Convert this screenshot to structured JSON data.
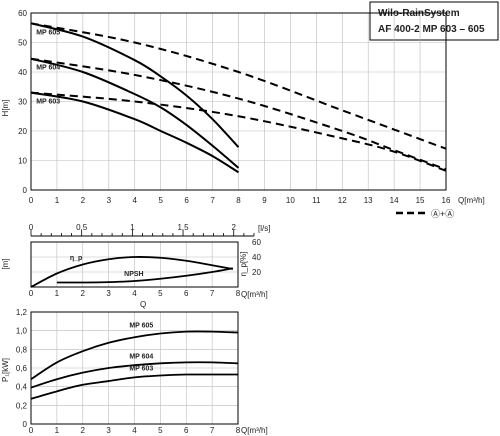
{
  "header": {
    "title_line1": "Wilo-RainSystem",
    "title_line2": "AF 400-2   MP 603 – 605"
  },
  "legend": {
    "label": "Ⓐ+Ⓐ"
  },
  "chart_data": [
    {
      "type": "line",
      "id": "head-curve",
      "ylabel": "H[m]",
      "xlabel": "Q[m³/h]",
      "xlim": [
        0,
        16
      ],
      "ylim": [
        0,
        60
      ],
      "x_ticks": [
        "0",
        "1",
        "2",
        "3",
        "4",
        "5",
        "6",
        "7",
        "8",
        "9",
        "10",
        "11",
        "12",
        "13",
        "14",
        "15",
        "16"
      ],
      "y_ticks": [
        "0",
        "10",
        "20",
        "30",
        "40",
        "50",
        "60"
      ],
      "grid": true,
      "series": [
        {
          "name": "MP 605",
          "style": "solid",
          "x": [
            0,
            2,
            4,
            5,
            6,
            7,
            8
          ],
          "y": [
            56.5,
            52,
            44,
            38.5,
            32,
            24,
            14.5
          ]
        },
        {
          "name": "MP 604",
          "style": "solid",
          "x": [
            0,
            2,
            4,
            5,
            6,
            7,
            8
          ],
          "y": [
            44.5,
            40,
            32.5,
            28,
            22,
            15,
            7.5
          ]
        },
        {
          "name": "MP 603",
          "style": "solid",
          "x": [
            0,
            2,
            4,
            5,
            6,
            7,
            8
          ],
          "y": [
            33,
            30,
            24,
            20,
            16,
            11.5,
            6
          ]
        },
        {
          "name": "MP 605 Ⓐ+Ⓐ",
          "style": "dashed",
          "x": [
            0,
            4,
            8,
            12,
            14,
            16
          ],
          "y": [
            56.5,
            50,
            40,
            27,
            20.5,
            14
          ]
        },
        {
          "name": "MP 604 Ⓐ+Ⓐ",
          "style": "dashed",
          "x": [
            0,
            4,
            8,
            12,
            14,
            16
          ],
          "y": [
            44.5,
            39,
            31,
            20,
            13.5,
            7
          ]
        },
        {
          "name": "MP 603 Ⓐ+Ⓐ",
          "style": "dashed",
          "x": [
            0,
            4,
            8,
            12,
            14,
            16
          ],
          "y": [
            33,
            30,
            25,
            17.5,
            13,
            6.5
          ]
        }
      ]
    },
    {
      "type": "axis",
      "id": "ls-scale",
      "xlabel": "[l/s]",
      "xlim": [
        0,
        2.2
      ],
      "x_ticks": [
        "0",
        "0,5",
        "1",
        "1,5",
        "2"
      ]
    },
    {
      "type": "line",
      "id": "npsh-eff",
      "ylabel_left": "[m]",
      "ylabel_right": "η_p[%]",
      "xlabel": "Q[m³/h]",
      "xlim": [
        0,
        8
      ],
      "ylim_right": [
        0,
        60
      ],
      "x_ticks": [
        "0",
        "1",
        "2",
        "3",
        "4",
        "5",
        "6",
        "7",
        "8"
      ],
      "y_ticks_right": [
        "20",
        "40",
        "60"
      ],
      "grid": true,
      "series": [
        {
          "name": "η_p",
          "x": [
            0,
            1,
            2,
            3,
            4,
            5,
            6,
            7,
            7.8
          ],
          "y": [
            0,
            18,
            30,
            37,
            40,
            39,
            35,
            29,
            24
          ]
        },
        {
          "name": "NPSH",
          "x": [
            1,
            2,
            3,
            4,
            5,
            6,
            7,
            7.8
          ],
          "y": [
            6,
            6,
            6.5,
            8,
            11,
            15,
            20,
            25
          ]
        }
      ]
    },
    {
      "type": "line",
      "id": "power",
      "ylabel": "P₁[kW]",
      "xlabel": "Q[m³/h]",
      "xlim": [
        0,
        8
      ],
      "ylim": [
        0,
        1.2
      ],
      "x_ticks": [
        "0",
        "1",
        "2",
        "3",
        "4",
        "5",
        "6",
        "7",
        "8"
      ],
      "y_ticks": [
        "0",
        "0,2",
        "0,4",
        "0,6",
        "0,8",
        "1,0",
        "1,2"
      ],
      "grid": true,
      "series": [
        {
          "name": "MP 605",
          "x": [
            0,
            1,
            2,
            3,
            4,
            5,
            6,
            7,
            8
          ],
          "y": [
            0.48,
            0.66,
            0.78,
            0.87,
            0.93,
            0.97,
            0.99,
            0.99,
            0.98
          ]
        },
        {
          "name": "MP 604",
          "x": [
            0,
            1,
            2,
            3,
            4,
            5,
            6,
            7,
            8
          ],
          "y": [
            0.39,
            0.48,
            0.55,
            0.6,
            0.63,
            0.65,
            0.66,
            0.66,
            0.65
          ]
        },
        {
          "name": "MP 603",
          "x": [
            0,
            1,
            2,
            3,
            4,
            5,
            6,
            7,
            8
          ],
          "y": [
            0.27,
            0.35,
            0.42,
            0.46,
            0.5,
            0.52,
            0.53,
            0.53,
            0.53
          ]
        }
      ]
    }
  ],
  "labels": {
    "q_mid": "Q"
  }
}
